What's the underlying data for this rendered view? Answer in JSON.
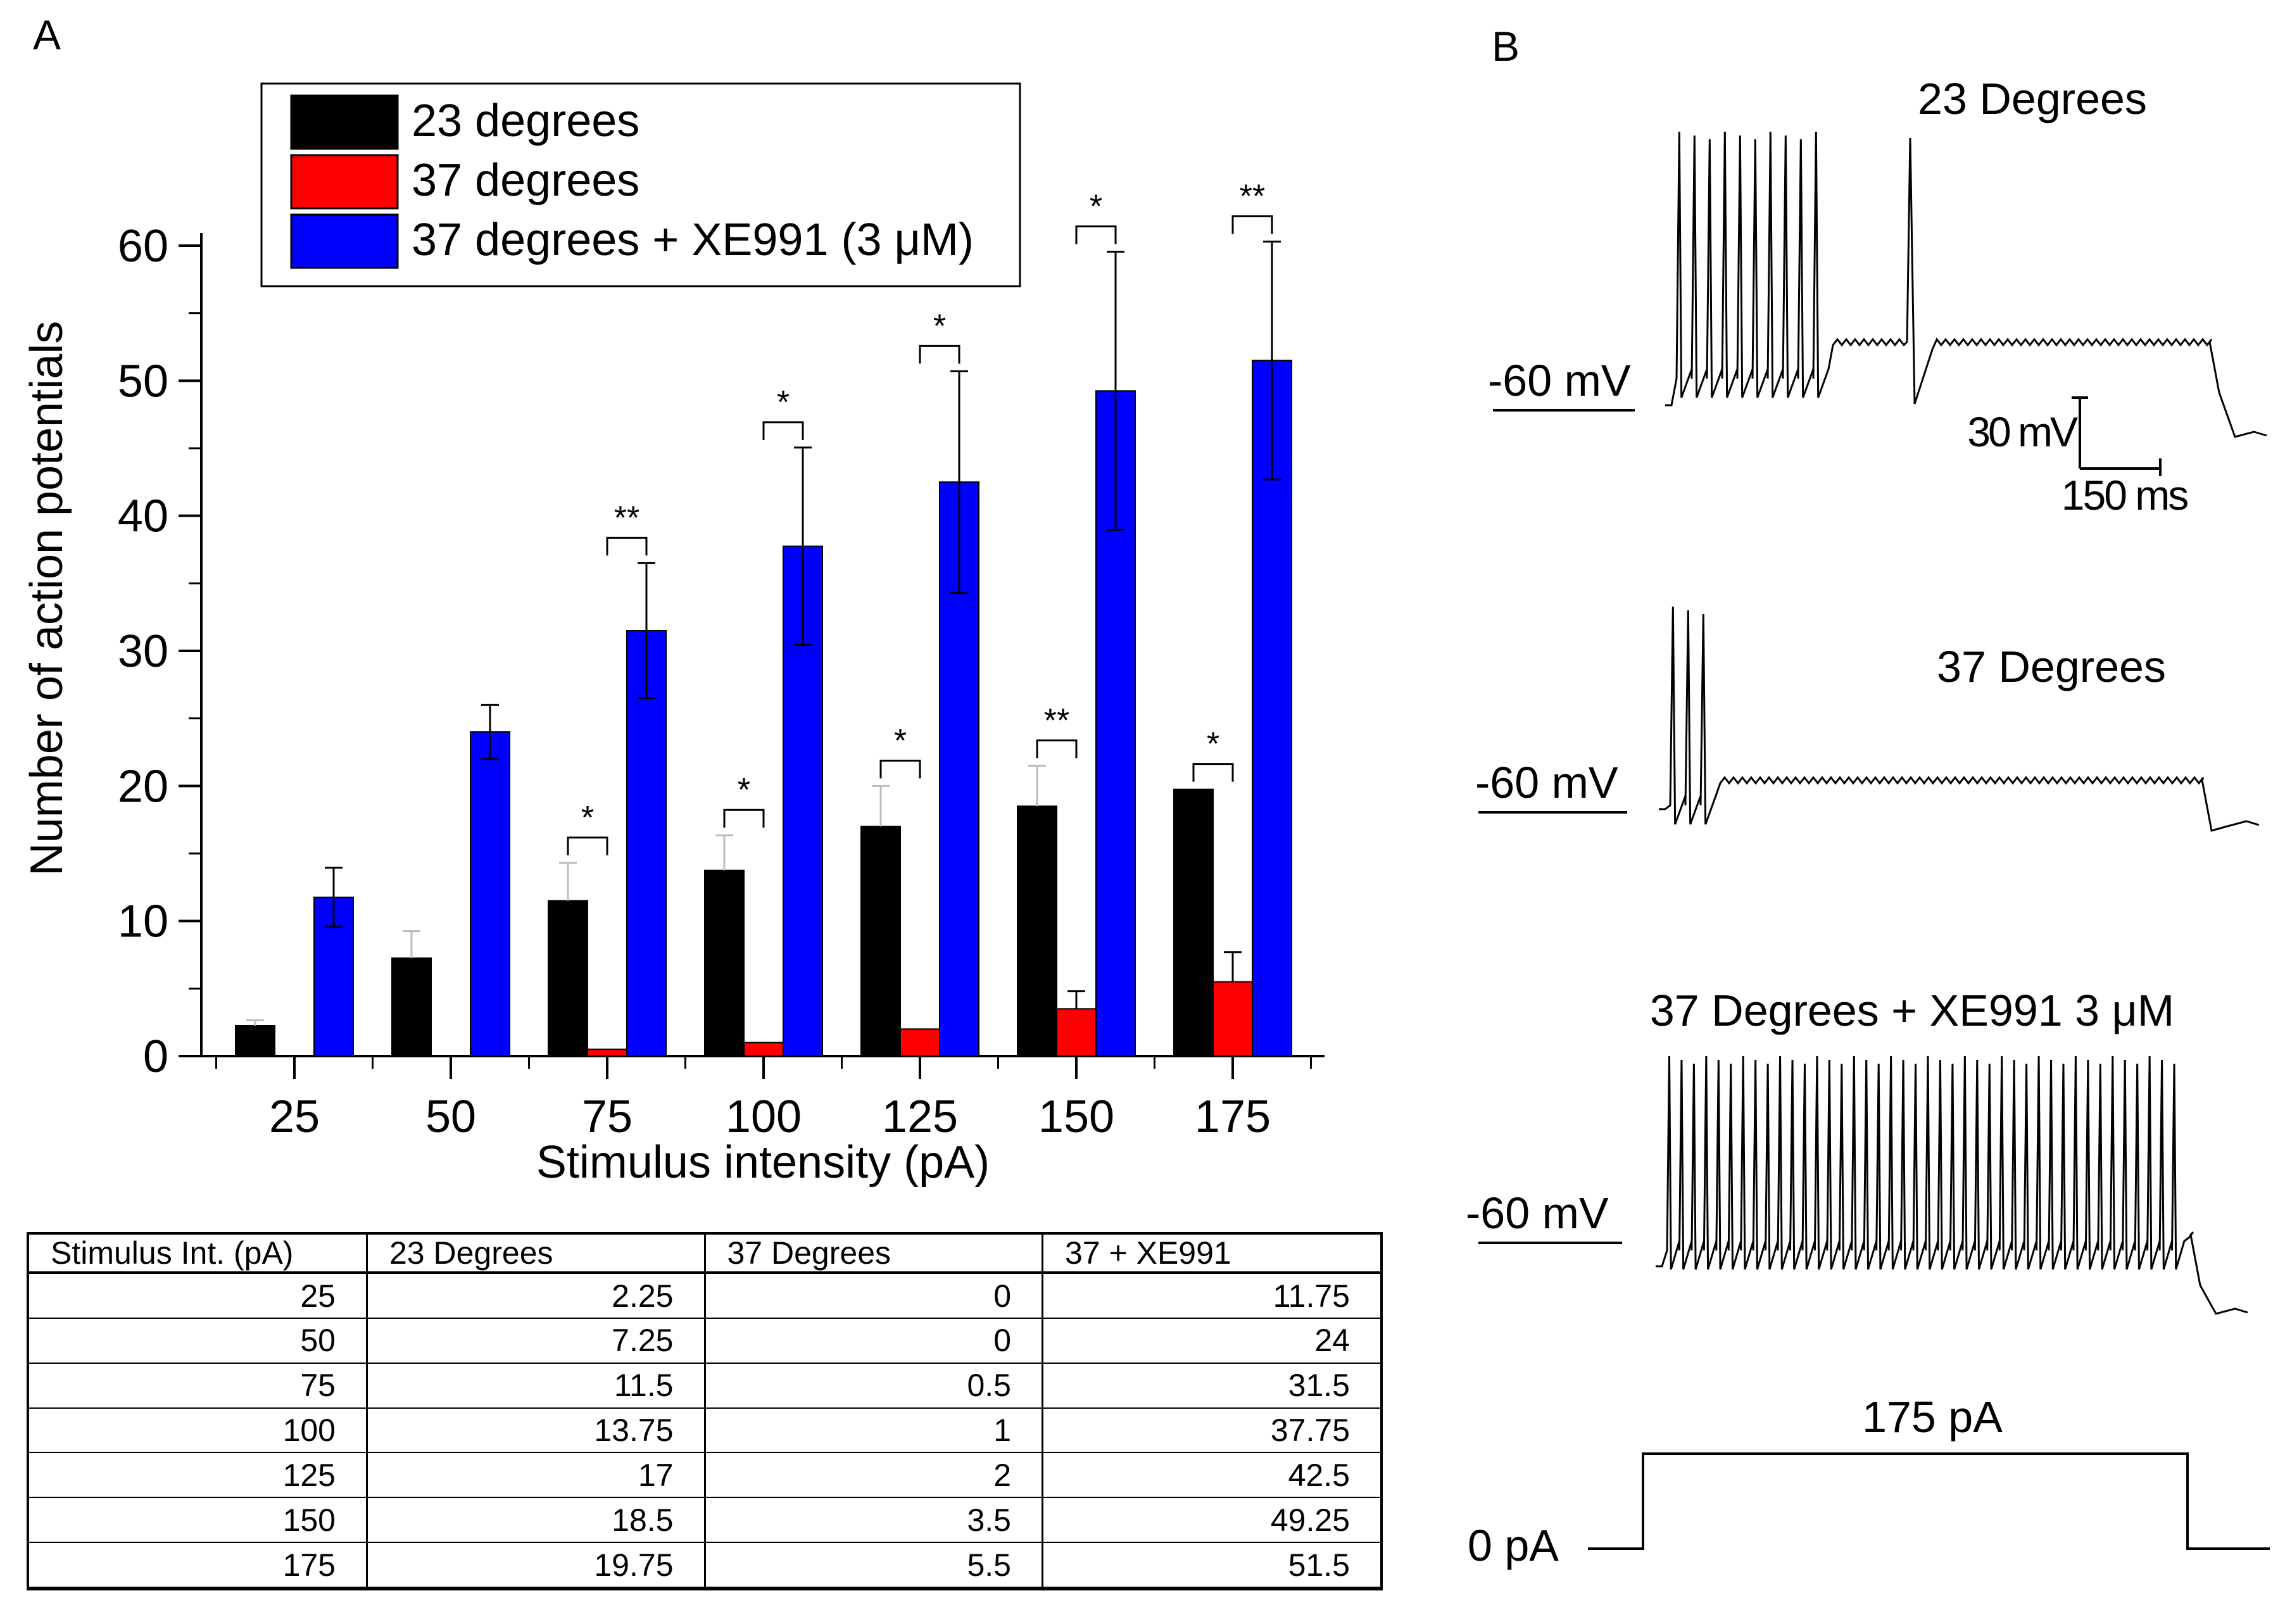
{
  "panel_labels": {
    "a": "A",
    "b": "B"
  },
  "colors": {
    "t23": "#000000",
    "t37": "#ff0000",
    "xe": "#0000ff"
  },
  "chart_data": [
    {
      "type": "bar",
      "panel": "A",
      "xlabel": "Stimulus intensity (pA)",
      "ylabel": "Number of action potentials",
      "ylim": [
        0,
        60
      ],
      "yticks": [
        0,
        10,
        20,
        30,
        40,
        50,
        60
      ],
      "categories": [
        "25",
        "50",
        "75",
        "100",
        "125",
        "150",
        "175"
      ],
      "legend_position": "top-center",
      "series": [
        {
          "name": "23 degrees",
          "color": "#000000",
          "values": [
            2.25,
            7.25,
            11.5,
            13.75,
            17,
            18.5,
            19.75
          ],
          "errors": [
            0.4,
            2.0,
            2.8,
            2.6,
            3.0,
            3.0,
            0
          ]
        },
        {
          "name": "37 degrees",
          "color": "#ff0000",
          "values": [
            0,
            0,
            0.5,
            1,
            2,
            3.5,
            5.5
          ],
          "errors": [
            0,
            0,
            0,
            0,
            0,
            1.3,
            2.2
          ]
        },
        {
          "name": "37 degrees + XE991 (3 μM)",
          "color": "#0000ff",
          "values": [
            11.75,
            24,
            31.5,
            37.75,
            42.5,
            49.25,
            51.5
          ],
          "errors": [
            2.2,
            2.0,
            5.0,
            7.3,
            8.2,
            10.3,
            8.8
          ]
        }
      ],
      "significance": [
        {
          "category": 2,
          "pair": [
            0,
            1
          ],
          "label": "*"
        },
        {
          "category": 2,
          "pair": [
            1,
            2
          ],
          "label": "**"
        },
        {
          "category": 3,
          "pair": [
            0,
            1
          ],
          "label": "*"
        },
        {
          "category": 3,
          "pair": [
            1,
            2
          ],
          "label": "*"
        },
        {
          "category": 4,
          "pair": [
            0,
            1
          ],
          "label": "*"
        },
        {
          "category": 4,
          "pair": [
            1,
            2
          ],
          "label": "*"
        },
        {
          "category": 5,
          "pair": [
            0,
            1
          ],
          "label": "**"
        },
        {
          "category": 5,
          "pair": [
            1,
            2
          ],
          "label": "*"
        },
        {
          "category": 6,
          "pair": [
            0,
            1
          ],
          "label": "*"
        },
        {
          "category": 6,
          "pair": [
            1,
            2
          ],
          "label": "**"
        }
      ]
    },
    {
      "type": "table",
      "columns": [
        "Stimulus Int. (pA)",
        "23 Degrees",
        "37 Degrees",
        "37 + XE991"
      ],
      "rows": [
        [
          "25",
          "2.25",
          "0",
          "11.75"
        ],
        [
          "50",
          "7.25",
          "0",
          "24"
        ],
        [
          "75",
          "11.5",
          "0.5",
          "31.5"
        ],
        [
          "100",
          "13.75",
          "1",
          "37.75"
        ],
        [
          "125",
          "17",
          "2",
          "42.5"
        ],
        [
          "150",
          "18.5",
          "3.5",
          "49.25"
        ],
        [
          "175",
          "19.75",
          "5.5",
          "51.5"
        ]
      ]
    },
    {
      "type": "line",
      "panel": "B",
      "traces": [
        {
          "title": "23 Degrees",
          "baseline_label": "-60 mV",
          "spikes": 10,
          "late_spikes": 1
        },
        {
          "title": "37 Degrees",
          "baseline_label": "-60 mV",
          "spikes": 3,
          "late_spikes": 0
        },
        {
          "title": "37 Degrees + XE991 3 μM",
          "baseline_label": "-60 mV",
          "spikes": 42,
          "late_spikes": 0
        }
      ],
      "scale_bar": {
        "voltage": "30 mV",
        "time": "150 ms"
      },
      "stimulus": {
        "amplitude_label": "175 pA",
        "baseline_label": "0 pA"
      }
    }
  ]
}
